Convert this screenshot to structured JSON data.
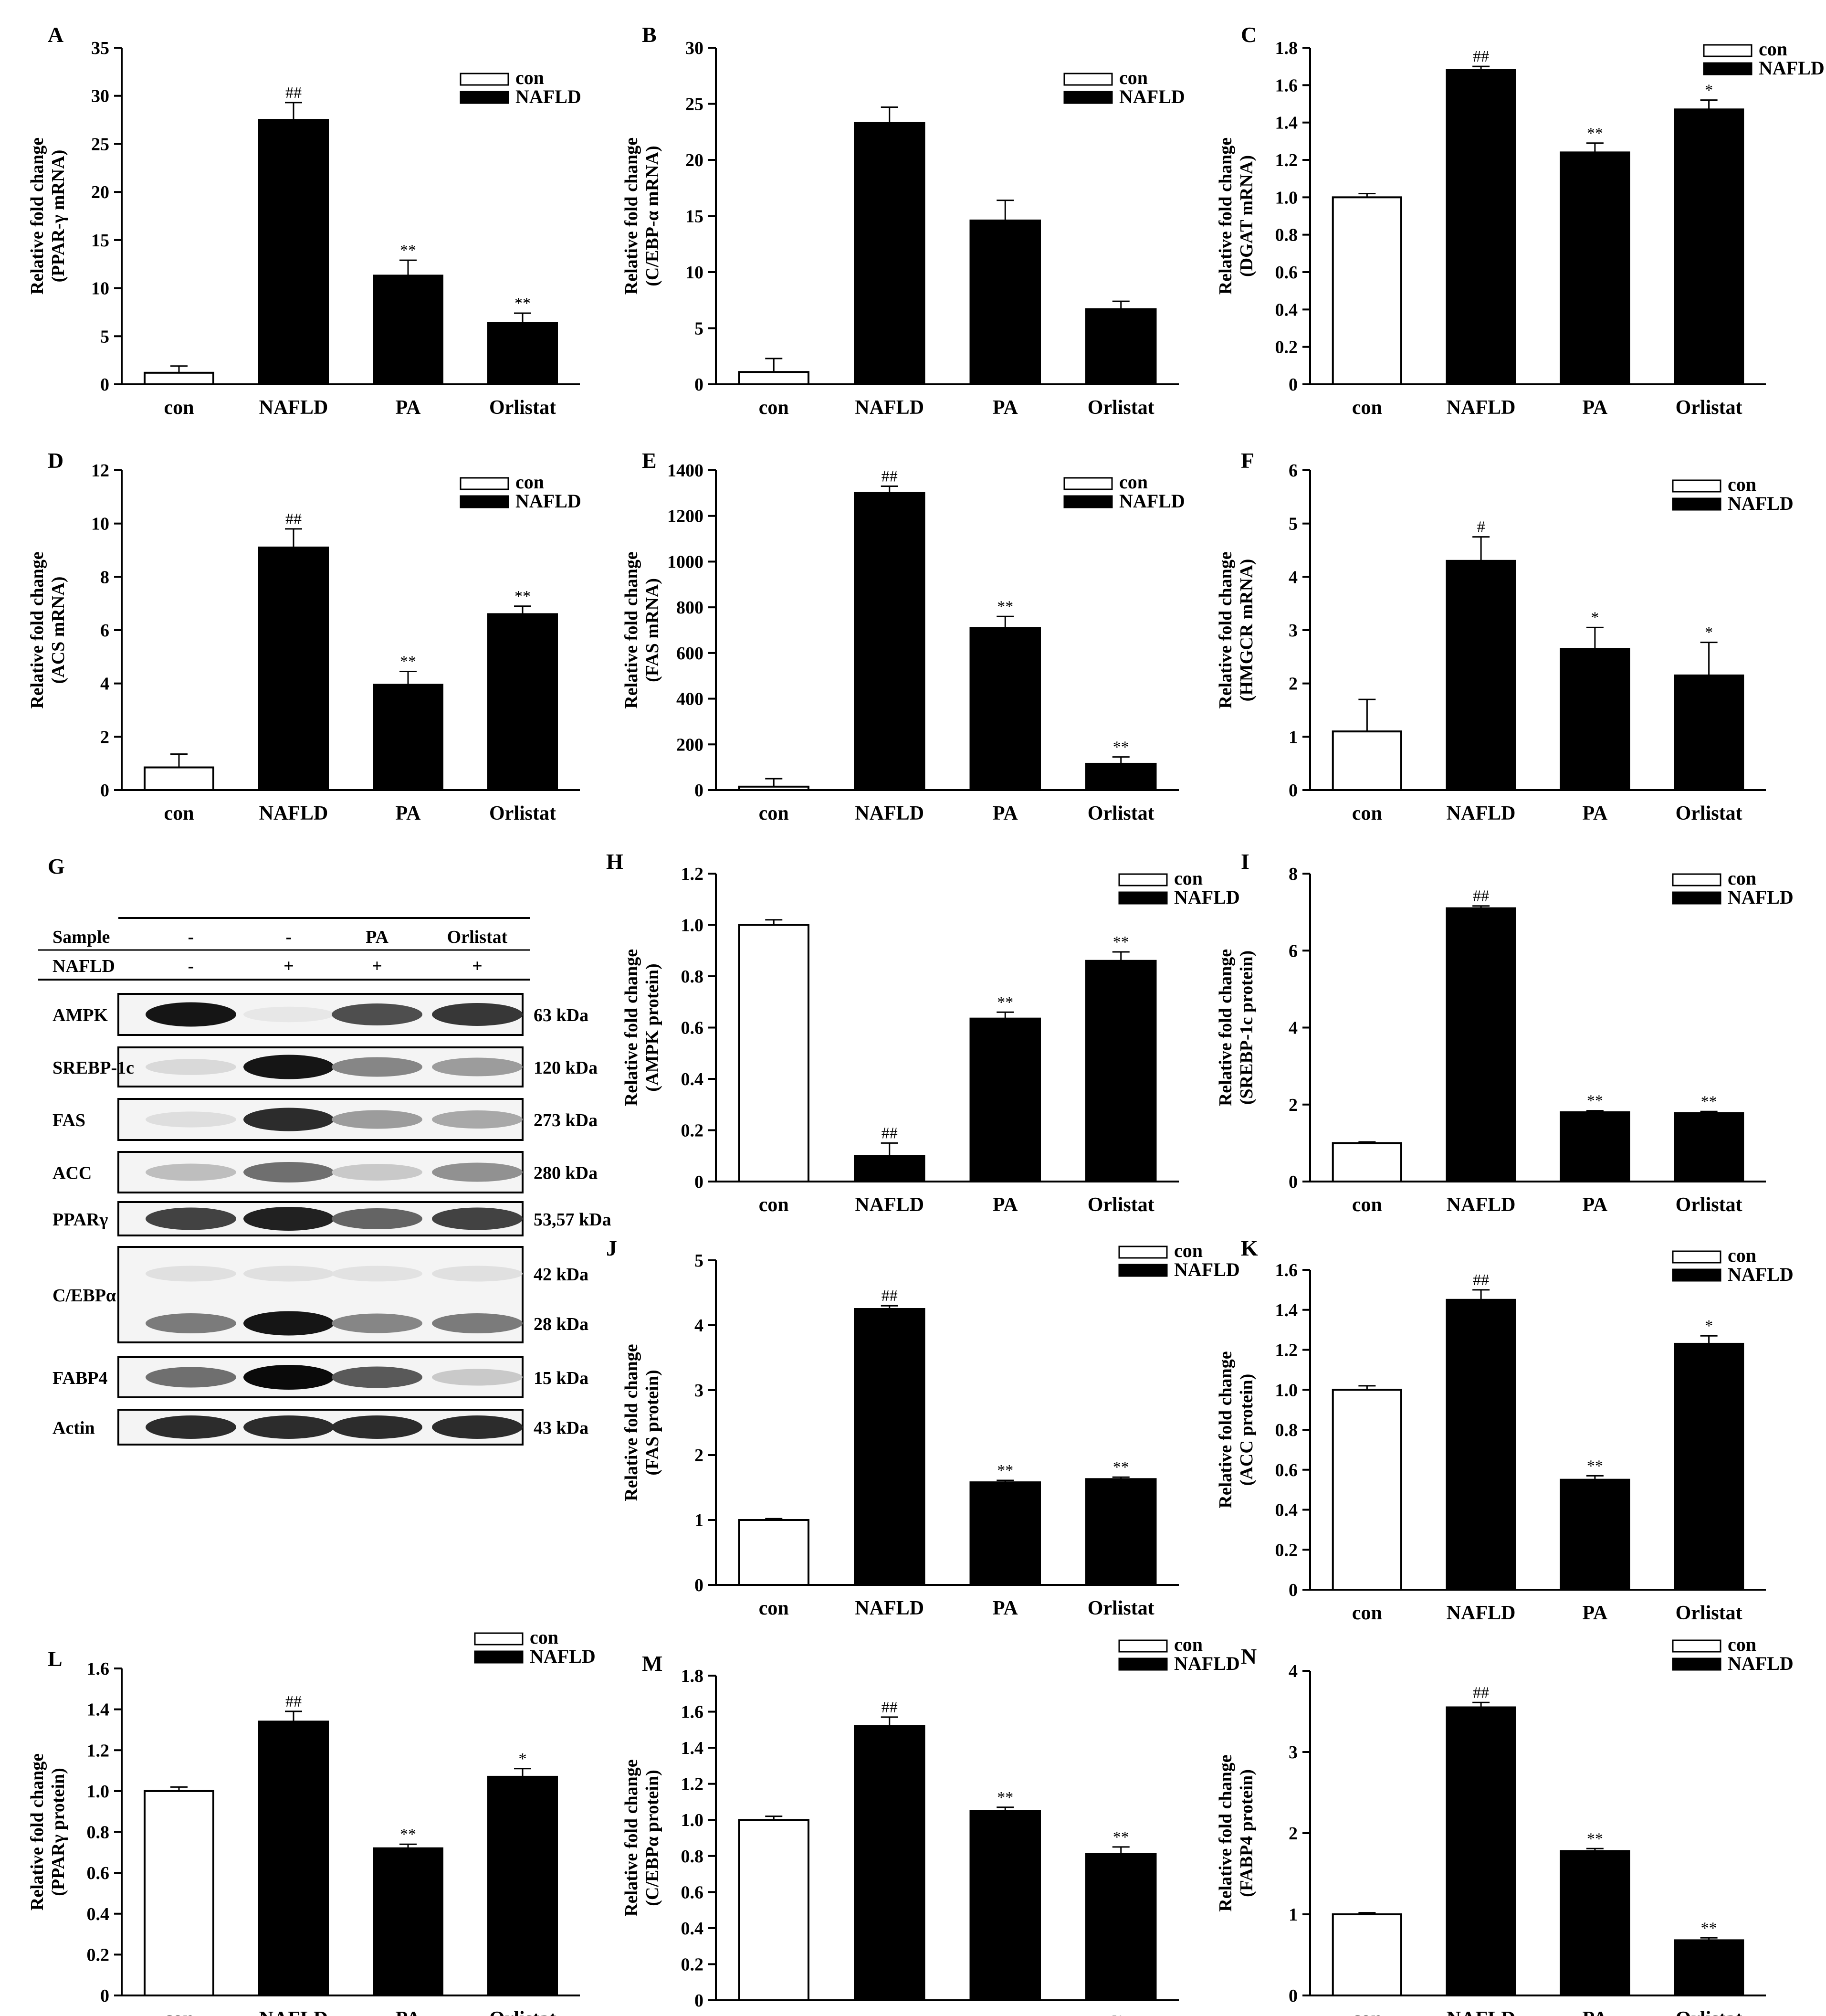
{
  "legend": [
    "con",
    "NAFLD"
  ],
  "charts": [
    {
      "id": "A",
      "type": "bar",
      "ylabel": [
        "Relative fold change",
        "(PPAR-γ mRNA)"
      ],
      "categories": [
        "con",
        "NAFLD",
        "PA",
        "Orlistat"
      ],
      "values": [
        1.2,
        27.5,
        11.3,
        6.4
      ],
      "errors": [
        0.7,
        1.8,
        1.6,
        1.0
      ],
      "sig": [
        "",
        "##",
        "**",
        "**"
      ],
      "ylim": [
        0,
        35
      ],
      "yticks": [
        "0",
        "5",
        "10",
        "15",
        "20",
        "25",
        "30",
        "35"
      ]
    },
    {
      "id": "B",
      "type": "bar",
      "ylabel": [
        "Relative fold change",
        "(C/EBP-α mRNA)"
      ],
      "categories": [
        "con",
        "NAFLD",
        "PA",
        "Orlistat"
      ],
      "values": [
        1.1,
        23.3,
        14.6,
        6.7
      ],
      "errors": [
        1.2,
        1.4,
        1.8,
        0.7
      ],
      "sig": [
        "",
        "",
        "",
        ""
      ],
      "ylim": [
        0,
        30
      ],
      "yticks": [
        "0",
        "5",
        "10",
        "15",
        "20",
        "25",
        "30"
      ]
    },
    {
      "id": "C",
      "type": "bar",
      "ylabel": [
        "Relative fold change",
        "(DGAT mRNA)"
      ],
      "categories": [
        "con",
        "NAFLD",
        "PA",
        "Orlistat"
      ],
      "values": [
        1.0,
        1.68,
        1.24,
        1.47
      ],
      "errors": [
        0.02,
        0.02,
        0.05,
        0.05
      ],
      "sig": [
        "",
        "##",
        "**",
        "*"
      ],
      "ylim": [
        0,
        1.8
      ],
      "yticks": [
        "0",
        "0.2",
        "0.4",
        "0.6",
        "0.8",
        "1.0",
        "1.2",
        "1.4",
        "1.6",
        "1.8"
      ]
    },
    {
      "id": "D",
      "type": "bar",
      "ylabel": [
        "Relative fold change",
        "(ACS mRNA)"
      ],
      "categories": [
        "con",
        "NAFLD",
        "PA",
        "Orlistat"
      ],
      "values": [
        0.85,
        9.1,
        3.95,
        6.6
      ],
      "errors": [
        0.5,
        0.7,
        0.5,
        0.3
      ],
      "sig": [
        "",
        "##",
        "**",
        "**"
      ],
      "ylim": [
        0,
        12
      ],
      "yticks": [
        "0",
        "2",
        "4",
        "6",
        "8",
        "10",
        "12"
      ]
    },
    {
      "id": "E",
      "type": "bar",
      "ylabel": [
        "Relative fold change",
        "(FAS mRNA)"
      ],
      "categories": [
        "con",
        "NAFLD",
        "PA",
        "Orlistat"
      ],
      "values": [
        15,
        1300,
        710,
        115
      ],
      "errors": [
        35,
        30,
        50,
        30
      ],
      "sig": [
        "",
        "##",
        "**",
        "**"
      ],
      "ylim": [
        0,
        1400
      ],
      "yticks": [
        "0",
        "200",
        "400",
        "600",
        "800",
        "1000",
        "1200",
        "1400"
      ]
    },
    {
      "id": "F",
      "type": "bar",
      "ylabel": [
        "Relative fold change",
        "(HMGCR mRNA)"
      ],
      "categories": [
        "con",
        "NAFLD",
        "PA",
        "Orlistat"
      ],
      "values": [
        1.1,
        4.3,
        2.65,
        2.15
      ],
      "errors": [
        0.6,
        0.45,
        0.4,
        0.62
      ],
      "sig": [
        "",
        "#",
        "*",
        "*"
      ],
      "ylim": [
        0,
        6
      ],
      "yticks": [
        "0",
        "1",
        "2",
        "3",
        "4",
        "5",
        "6"
      ]
    },
    {
      "id": "H",
      "type": "bar",
      "ylabel": [
        "Relative fold change",
        "(AMPK protein)"
      ],
      "categories": [
        "con",
        "NAFLD",
        "PA",
        "Orlistat"
      ],
      "values": [
        1.0,
        0.1,
        0.635,
        0.86
      ],
      "errors": [
        0.02,
        0.05,
        0.025,
        0.035
      ],
      "sig": [
        "",
        "##",
        "**",
        "**"
      ],
      "ylim": [
        0,
        1.2
      ],
      "yticks": [
        "0",
        "0.2",
        "0.4",
        "0.6",
        "0.8",
        "1.0",
        "1.2"
      ]
    },
    {
      "id": "I",
      "type": "bar",
      "ylabel": [
        "Relative fold change",
        "(SREBP-1c protein)"
      ],
      "categories": [
        "con",
        "NAFLD",
        "PA",
        "Orlistat"
      ],
      "values": [
        1.0,
        7.1,
        1.8,
        1.78
      ],
      "errors": [
        0.03,
        0.06,
        0.04,
        0.04
      ],
      "sig": [
        "",
        "##",
        "**",
        "**"
      ],
      "ylim": [
        0,
        8
      ],
      "yticks": [
        "0",
        "2",
        "4",
        "6",
        "8"
      ]
    },
    {
      "id": "J",
      "type": "bar",
      "ylabel": [
        "Relative fold change",
        "(FAS protein)"
      ],
      "categories": [
        "con",
        "NAFLD",
        "PA",
        "Orlistat"
      ],
      "values": [
        1.0,
        4.25,
        1.58,
        1.63
      ],
      "errors": [
        0.02,
        0.05,
        0.03,
        0.03
      ],
      "sig": [
        "",
        "##",
        "**",
        "**"
      ],
      "ylim": [
        0,
        5
      ],
      "yticks": [
        "0",
        "1",
        "2",
        "3",
        "4",
        "5"
      ]
    },
    {
      "id": "K",
      "type": "bar",
      "ylabel": [
        "Relative fold change",
        "(ACC protein)"
      ],
      "categories": [
        "con",
        "NAFLD",
        "PA",
        "Orlistat"
      ],
      "values": [
        1.0,
        1.45,
        0.55,
        1.23
      ],
      "errors": [
        0.02,
        0.05,
        0.02,
        0.04
      ],
      "sig": [
        "",
        "##",
        "**",
        "*"
      ],
      "ylim": [
        0,
        1.6
      ],
      "yticks": [
        "0",
        "0.2",
        "0.4",
        "0.6",
        "0.8",
        "1.0",
        "1.2",
        "1.4",
        "1.6"
      ]
    },
    {
      "id": "L",
      "type": "bar",
      "ylabel": [
        "Relative fold change",
        "(PPARγ protein)"
      ],
      "categories": [
        "con",
        "NAFLD",
        "PA",
        "Orlistat"
      ],
      "values": [
        1.0,
        1.34,
        0.72,
        1.07
      ],
      "errors": [
        0.02,
        0.05,
        0.02,
        0.04
      ],
      "sig": [
        "",
        "##",
        "**",
        "*"
      ],
      "ylim": [
        0,
        1.6
      ],
      "yticks": [
        "0",
        "0.2",
        "0.4",
        "0.6",
        "0.8",
        "1.0",
        "1.2",
        "1.4",
        "1.6"
      ]
    },
    {
      "id": "M",
      "type": "bar",
      "ylabel": [
        "Relative fold change",
        "(C/EBPα protein)"
      ],
      "categories": [
        "con",
        "NAFLD",
        "PA",
        "Orlistat"
      ],
      "values": [
        1.0,
        1.52,
        1.05,
        0.81
      ],
      "errors": [
        0.02,
        0.05,
        0.02,
        0.04
      ],
      "sig": [
        "",
        "##",
        "**",
        "**"
      ],
      "ylim": [
        0,
        1.8
      ],
      "yticks": [
        "0",
        "0.2",
        "0.4",
        "0.6",
        "0.8",
        "1.0",
        "1.2",
        "1.4",
        "1.6",
        "1.8"
      ]
    },
    {
      "id": "N",
      "type": "bar",
      "ylabel": [
        "Relative fold change",
        "(FABP4 protein)"
      ],
      "categories": [
        "con",
        "NAFLD",
        "PA",
        "Orlistat"
      ],
      "values": [
        1.0,
        3.55,
        1.78,
        0.68
      ],
      "errors": [
        0.02,
        0.06,
        0.03,
        0.03
      ],
      "sig": [
        "",
        "##",
        "**",
        "**"
      ],
      "ylim": [
        0,
        4
      ],
      "yticks": [
        "0",
        "1",
        "2",
        "3",
        "4"
      ]
    }
  ],
  "western": {
    "id": "G",
    "header": [
      {
        "label": "Sample",
        "cols": [
          "-",
          "-",
          "PA",
          "Orlistat"
        ]
      },
      {
        "label": "NAFLD",
        "cols": [
          "-",
          "+",
          "+",
          "+"
        ]
      }
    ],
    "blots": [
      {
        "label": "AMPK",
        "kda": [
          "63 kDa"
        ],
        "bands": [
          [
            0.95,
            0.02,
            0.7,
            0.8
          ]
        ]
      },
      {
        "label": "SREBP-1c",
        "kda": [
          "120 kDa"
        ],
        "bands": [
          [
            0.08,
            0.95,
            0.45,
            0.35
          ]
        ]
      },
      {
        "label": "FAS",
        "kda": [
          "273 kDa"
        ],
        "bands": [
          [
            0.06,
            0.85,
            0.35,
            0.3
          ]
        ]
      },
      {
        "label": "ACC",
        "kda": [
          "280 kDa"
        ],
        "bands": [
          [
            0.2,
            0.55,
            0.15,
            0.4
          ]
        ]
      },
      {
        "label": "PPARγ",
        "kda": [
          "53,57 kDa"
        ],
        "bands": [
          [
            0.75,
            0.9,
            0.6,
            0.75
          ]
        ]
      },
      {
        "label": "C/EBPα",
        "kda": [
          "42 kDa",
          "28 kDa"
        ],
        "bands": [
          [
            0.05,
            0.05,
            0.04,
            0.05
          ],
          [
            0.5,
            0.95,
            0.45,
            0.5
          ]
        ]
      },
      {
        "label": "FABP4",
        "kda": [
          "15 kDa"
        ],
        "bands": [
          [
            0.55,
            1.0,
            0.65,
            0.15
          ]
        ]
      },
      {
        "label": "Actin",
        "kda": [
          "43 kDa"
        ],
        "bands": [
          [
            0.85,
            0.85,
            0.85,
            0.85
          ]
        ]
      }
    ]
  }
}
